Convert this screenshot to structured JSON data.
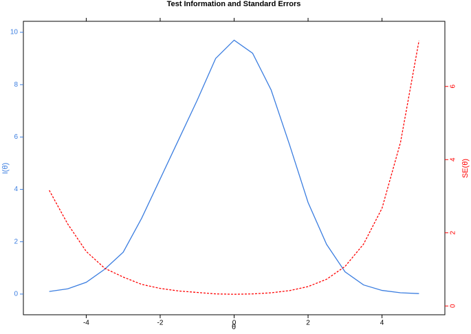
{
  "chart_data": {
    "type": "line",
    "title": "Test Information and Standard Errors",
    "x_label": "θ",
    "y_label": "I(θ)",
    "y2_label": "SE(θ)",
    "x": [
      -5,
      -4.5,
      -4,
      -3.5,
      -3,
      -2.5,
      -2,
      -1.5,
      -1,
      -0.5,
      0,
      0.5,
      1,
      1.5,
      2,
      2.5,
      3,
      3.5,
      4,
      4.5,
      5
    ],
    "series": [
      {
        "color": "#3a7de0",
        "linestyle": "solid",
        "axis": "y",
        "values": [
          0.1,
          0.2,
          0.45,
          0.95,
          1.6,
          2.9,
          4.4,
          5.9,
          7.4,
          9.0,
          9.7,
          9.2,
          7.8,
          5.7,
          3.5,
          1.9,
          0.85,
          0.35,
          0.14,
          0.05,
          0.019
        ]
      },
      {
        "color": "#ff0000",
        "linestyle": "dashed",
        "axis": "y2",
        "values": [
          3.16,
          2.24,
          1.49,
          1.03,
          0.79,
          0.59,
          0.48,
          0.41,
          0.37,
          0.33,
          0.32,
          0.33,
          0.36,
          0.42,
          0.53,
          0.73,
          1.08,
          1.69,
          2.67,
          4.47,
          7.25
        ]
      }
    ],
    "xlim": [
      -5.7,
      5.7
    ],
    "xticks": [
      -4,
      -2,
      0,
      2,
      4
    ],
    "ylim": [
      -0.79,
      10.42
    ],
    "yticks": [
      0,
      2,
      4,
      6,
      8,
      10
    ],
    "y_color": "#3a7de0",
    "y2lim": [
      -0.24,
      7.78
    ],
    "y2ticks": [
      0,
      2,
      4,
      6
    ],
    "y2_color": "#ff0000"
  }
}
